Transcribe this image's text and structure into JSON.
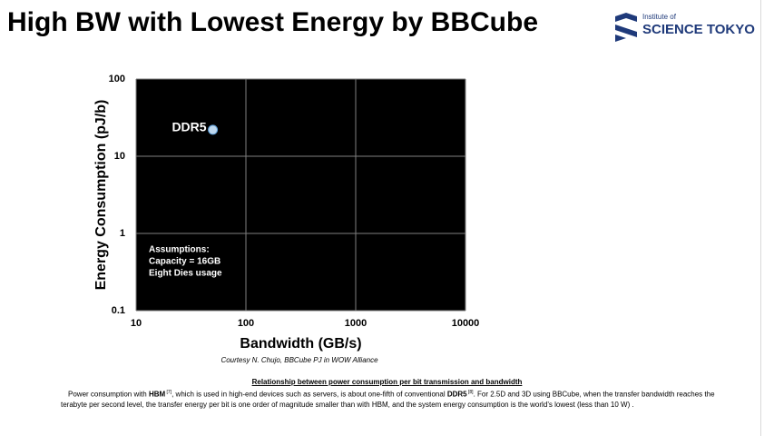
{
  "header": {
    "title": "High BW with Lowest Energy by BBCube",
    "logo": {
      "line1": "Institute of",
      "line2": "SCIENCE TOKYO"
    }
  },
  "chart_data": {
    "type": "scatter",
    "x_label": "Bandwidth (GB/s)",
    "y_label": "Energy Consumption (pJ/b)",
    "xlim": [
      10,
      10000
    ],
    "ylim": [
      0.1,
      100
    ],
    "xticks": [
      10,
      100,
      1000,
      10000
    ],
    "yticks": [
      0.1,
      1,
      10,
      100
    ],
    "xlog": true,
    "ylog": true,
    "grid": true,
    "background": "#000000",
    "series": [
      {
        "name": "DDR5",
        "color": "#bdd7ee",
        "x": [
          50
        ],
        "values": [
          22
        ]
      }
    ],
    "annotation": [
      "Assumptions:",
      "Capacity = 16GB",
      "Eight Dies usage"
    ]
  },
  "credit": "Courtesy N. Chujo, BBCube PJ in WOW Alliance",
  "caption": {
    "title": "Relationship between power consumption per bit transmission and bandwidth",
    "body": [
      "Power consumption with ",
      "HBM",
      " [7]",
      ", which is used in high-end devices such as servers, is about one-fifth of conventional ",
      "DDR5",
      " [8]",
      ". For 2.5D and 3D using BBCube, when the transfer bandwidth reaches the terabyte per second level, the transfer energy per bit is one order of magnitude smaller than with HBM, and the system energy consumption is the world’s lowest (less than 10 W) ."
    ]
  }
}
